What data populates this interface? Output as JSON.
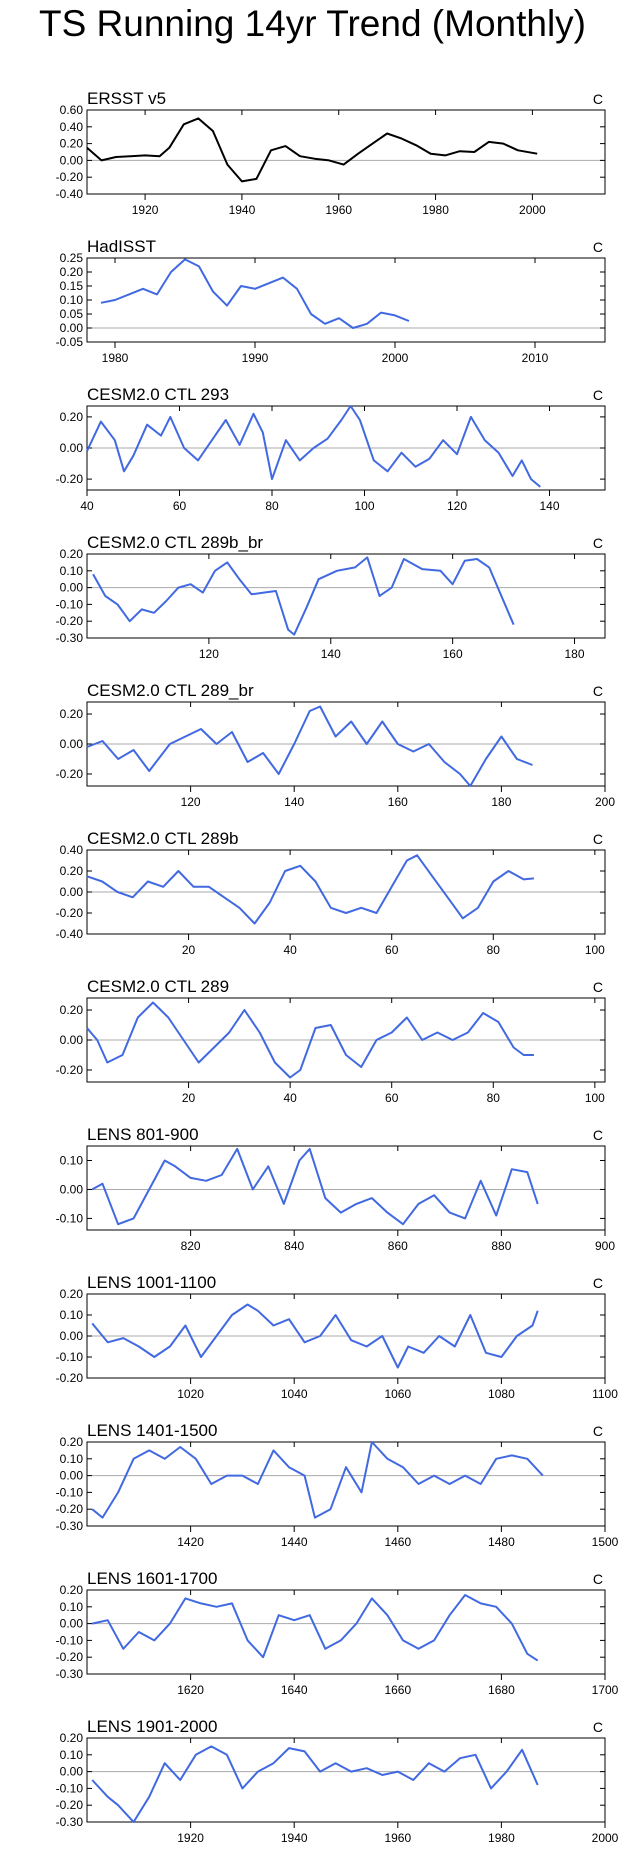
{
  "page_title": "TS Running 14yr Trend (Monthly)",
  "chart_data": [
    {
      "type": "line",
      "title": "ERSST v5",
      "units": "C",
      "series_color": "#000000",
      "xlim": [
        1908,
        2015
      ],
      "xticks": [
        1920,
        1940,
        1960,
        1980,
        2000
      ],
      "ylim": [
        -0.4,
        0.6
      ],
      "yticks": [
        -0.4,
        -0.2,
        0.0,
        0.2,
        0.4,
        0.6
      ],
      "yticklabels": [
        "-0.40",
        "-0.20",
        "0.00",
        "0.20",
        "0.40",
        "0.60"
      ],
      "x": [
        1908,
        1911,
        1914,
        1917,
        1920,
        1923,
        1925,
        1928,
        1931,
        1934,
        1937,
        1940,
        1943,
        1946,
        1949,
        1952,
        1955,
        1958,
        1961,
        1964,
        1967,
        1970,
        1973,
        1976,
        1979,
        1982,
        1985,
        1988,
        1991,
        1994,
        1997,
        2001
      ],
      "y": [
        0.15,
        0.0,
        0.04,
        0.05,
        0.06,
        0.05,
        0.15,
        0.43,
        0.5,
        0.35,
        -0.05,
        -0.25,
        -0.22,
        0.12,
        0.17,
        0.05,
        0.02,
        0.0,
        -0.05,
        0.08,
        0.2,
        0.32,
        0.26,
        0.18,
        0.08,
        0.06,
        0.11,
        0.1,
        0.22,
        0.2,
        0.12,
        0.08
      ]
    },
    {
      "type": "line",
      "title": "HadISST",
      "units": "C",
      "series_color": "#4169e1",
      "xlim": [
        1978,
        2015
      ],
      "xticks": [
        1980,
        1990,
        2000,
        2010
      ],
      "ylim": [
        -0.05,
        0.25
      ],
      "yticks": [
        -0.05,
        0.0,
        0.05,
        0.1,
        0.15,
        0.2,
        0.25
      ],
      "yticklabels": [
        "-0.05",
        "0.00",
        "0.05",
        "0.10",
        "0.15",
        "0.20",
        "0.25"
      ],
      "x": [
        1979,
        1980,
        1981,
        1982,
        1983,
        1984,
        1985,
        1986,
        1987,
        1988,
        1989,
        1990,
        1991,
        1992,
        1993,
        1994,
        1995,
        1996,
        1997,
        1998,
        1999,
        2000,
        2001
      ],
      "y": [
        0.09,
        0.1,
        0.12,
        0.14,
        0.12,
        0.2,
        0.245,
        0.22,
        0.13,
        0.08,
        0.15,
        0.14,
        0.16,
        0.18,
        0.14,
        0.05,
        0.015,
        0.035,
        0.0,
        0.015,
        0.055,
        0.045,
        0.025
      ]
    },
    {
      "type": "line",
      "title": "CESM2.0 CTL 293",
      "units": "C",
      "series_color": "#4169e1",
      "xlim": [
        40,
        152
      ],
      "xticks": [
        40,
        60,
        80,
        100,
        120,
        140
      ],
      "ylim": [
        -0.27,
        0.27
      ],
      "yticks": [
        -0.2,
        0.0,
        0.2
      ],
      "yticklabels": [
        "-0.20",
        "0.00",
        "0.20"
      ],
      "x": [
        40,
        43,
        46,
        48,
        50,
        53,
        56,
        58,
        61,
        64,
        67,
        70,
        73,
        76,
        78,
        80,
        83,
        86,
        89,
        92,
        95,
        97,
        99,
        102,
        105,
        108,
        111,
        114,
        117,
        120,
        123,
        126,
        129,
        132,
        134,
        136,
        138
      ],
      "y": [
        -0.02,
        0.17,
        0.05,
        -0.15,
        -0.05,
        0.15,
        0.08,
        0.2,
        0.0,
        -0.08,
        0.05,
        0.18,
        0.02,
        0.22,
        0.1,
        -0.2,
        0.05,
        -0.08,
        0.0,
        0.06,
        0.18,
        0.27,
        0.18,
        -0.08,
        -0.15,
        -0.03,
        -0.12,
        -0.07,
        0.05,
        -0.04,
        0.2,
        0.05,
        -0.03,
        -0.18,
        -0.08,
        -0.2,
        -0.25
      ]
    },
    {
      "type": "line",
      "title": "CESM2.0 CTL 289b_br",
      "units": "C",
      "series_color": "#4169e1",
      "xlim": [
        100,
        185
      ],
      "xticks": [
        120,
        140,
        160,
        180
      ],
      "ylim": [
        -0.3,
        0.2
      ],
      "yticks": [
        -0.3,
        -0.2,
        -0.1,
        0.0,
        0.1,
        0.2
      ],
      "yticklabels": [
        "-0.30",
        "-0.20",
        "-0.10",
        "0.00",
        "0.10",
        "0.20"
      ],
      "x": [
        101,
        103,
        105,
        107,
        109,
        111,
        113,
        115,
        117,
        119,
        121,
        123,
        125,
        127,
        129,
        131,
        133,
        134,
        136,
        138,
        141,
        144,
        146,
        148,
        150,
        152,
        155,
        158,
        160,
        162,
        164,
        166,
        168,
        170
      ],
      "y": [
        0.08,
        -0.05,
        -0.1,
        -0.2,
        -0.13,
        -0.15,
        -0.08,
        0.0,
        0.02,
        -0.03,
        0.1,
        0.15,
        0.05,
        -0.04,
        -0.03,
        -0.02,
        -0.25,
        -0.28,
        -0.12,
        0.05,
        0.1,
        0.12,
        0.18,
        -0.05,
        0.0,
        0.17,
        0.11,
        0.1,
        0.02,
        0.16,
        0.17,
        0.12,
        -0.05,
        -0.22
      ]
    },
    {
      "type": "line",
      "title": "CESM2.0 CTL 289_br",
      "units": "C",
      "series_color": "#4169e1",
      "xlim": [
        100,
        200
      ],
      "xticks": [
        120,
        140,
        160,
        180,
        200
      ],
      "ylim": [
        -0.28,
        0.28
      ],
      "yticks": [
        -0.2,
        0.0,
        0.2
      ],
      "yticklabels": [
        "-0.20",
        "0.00",
        "0.20"
      ],
      "x": [
        100,
        103,
        106,
        109,
        112,
        116,
        119,
        122,
        125,
        128,
        131,
        134,
        137,
        140,
        143,
        145,
        148,
        151,
        154,
        157,
        160,
        163,
        166,
        169,
        172,
        174,
        177,
        180,
        183,
        186
      ],
      "y": [
        -0.02,
        0.02,
        -0.1,
        -0.04,
        -0.18,
        0.0,
        0.05,
        0.1,
        0.0,
        0.08,
        -0.12,
        -0.06,
        -0.2,
        0.0,
        0.22,
        0.25,
        0.05,
        0.15,
        0.0,
        0.15,
        0.0,
        -0.05,
        0.0,
        -0.12,
        -0.2,
        -0.28,
        -0.1,
        0.05,
        -0.1,
        -0.14
      ]
    },
    {
      "type": "line",
      "title": "CESM2.0 CTL 289b",
      "units": "C",
      "series_color": "#4169e1",
      "xlim": [
        0,
        102
      ],
      "xticks": [
        20,
        40,
        60,
        80,
        100
      ],
      "ylim": [
        -0.4,
        0.4
      ],
      "yticks": [
        -0.4,
        -0.2,
        0.0,
        0.2,
        0.4
      ],
      "yticklabels": [
        "-0.40",
        "-0.20",
        "0.00",
        "0.20",
        "0.40"
      ],
      "x": [
        0,
        3,
        6,
        9,
        12,
        15,
        18,
        21,
        24,
        27,
        30,
        33,
        36,
        39,
        42,
        45,
        48,
        51,
        54,
        57,
        60,
        63,
        65,
        68,
        71,
        74,
        77,
        80,
        83,
        86,
        88
      ],
      "y": [
        0.15,
        0.1,
        0.0,
        -0.05,
        0.1,
        0.05,
        0.2,
        0.05,
        0.05,
        -0.05,
        -0.15,
        -0.3,
        -0.1,
        0.2,
        0.25,
        0.1,
        -0.15,
        -0.2,
        -0.15,
        -0.2,
        0.05,
        0.3,
        0.35,
        0.15,
        -0.05,
        -0.25,
        -0.15,
        0.1,
        0.2,
        0.12,
        0.13
      ]
    },
    {
      "type": "line",
      "title": "CESM2.0 CTL 289",
      "units": "C",
      "series_color": "#4169e1",
      "xlim": [
        0,
        102
      ],
      "xticks": [
        20,
        40,
        60,
        80,
        100
      ],
      "ylim": [
        -0.28,
        0.28
      ],
      "yticks": [
        -0.2,
        0.0,
        0.2
      ],
      "yticklabels": [
        "-0.20",
        "0.00",
        "0.20"
      ],
      "x": [
        0,
        2,
        4,
        7,
        10,
        13,
        16,
        19,
        22,
        25,
        28,
        31,
        34,
        37,
        40,
        42,
        45,
        48,
        51,
        54,
        57,
        60,
        63,
        66,
        69,
        72,
        75,
        78,
        81,
        84,
        86,
        88
      ],
      "y": [
        0.08,
        0.0,
        -0.15,
        -0.1,
        0.15,
        0.25,
        0.15,
        0.0,
        -0.15,
        -0.05,
        0.05,
        0.2,
        0.05,
        -0.15,
        -0.25,
        -0.2,
        0.08,
        0.1,
        -0.1,
        -0.18,
        0.0,
        0.05,
        0.15,
        0.0,
        0.05,
        0.0,
        0.05,
        0.18,
        0.12,
        -0.05,
        -0.1,
        -0.1
      ]
    },
    {
      "type": "line",
      "title": "LENS 801-900",
      "units": "C",
      "series_color": "#4169e1",
      "xlim": [
        800,
        900
      ],
      "xticks": [
        820,
        840,
        860,
        880,
        900
      ],
      "ylim": [
        -0.14,
        0.15
      ],
      "yticks": [
        -0.1,
        0.0,
        0.1
      ],
      "yticklabels": [
        "-0.10",
        "0.00",
        "0.10"
      ],
      "x": [
        801,
        803,
        806,
        809,
        812,
        815,
        817,
        820,
        823,
        826,
        829,
        832,
        835,
        838,
        841,
        843,
        846,
        849,
        852,
        855,
        858,
        861,
        864,
        867,
        870,
        873,
        876,
        879,
        882,
        885,
        887
      ],
      "y": [
        0.0,
        0.02,
        -0.12,
        -0.1,
        0.0,
        0.1,
        0.08,
        0.04,
        0.03,
        0.05,
        0.14,
        0.0,
        0.08,
        -0.05,
        0.1,
        0.14,
        -0.03,
        -0.08,
        -0.05,
        -0.03,
        -0.08,
        -0.12,
        -0.05,
        -0.02,
        -0.08,
        -0.1,
        0.03,
        -0.09,
        0.07,
        0.06,
        -0.05
      ]
    },
    {
      "type": "line",
      "title": "LENS 1001-1100",
      "units": "C",
      "series_color": "#4169e1",
      "xlim": [
        1000,
        1100
      ],
      "xticks": [
        1020,
        1040,
        1060,
        1080,
        1100
      ],
      "ylim": [
        -0.2,
        0.2
      ],
      "yticks": [
        -0.2,
        -0.1,
        0.0,
        0.1,
        0.2
      ],
      "yticklabels": [
        "-0.20",
        "-0.10",
        "0.00",
        "0.10",
        "0.20"
      ],
      "x": [
        1001,
        1004,
        1007,
        1010,
        1013,
        1016,
        1019,
        1022,
        1025,
        1028,
        1031,
        1033,
        1036,
        1039,
        1042,
        1045,
        1048,
        1051,
        1054,
        1057,
        1060,
        1062,
        1065,
        1068,
        1071,
        1074,
        1077,
        1080,
        1083,
        1086,
        1087
      ],
      "y": [
        0.06,
        -0.03,
        -0.01,
        -0.05,
        -0.1,
        -0.05,
        0.05,
        -0.1,
        0.0,
        0.1,
        0.15,
        0.12,
        0.05,
        0.08,
        -0.03,
        0.0,
        0.1,
        -0.02,
        -0.05,
        0.0,
        -0.15,
        -0.05,
        -0.08,
        0.0,
        -0.05,
        0.1,
        -0.08,
        -0.1,
        0.0,
        0.05,
        0.12
      ]
    },
    {
      "type": "line",
      "title": "LENS 1401-1500",
      "units": "C",
      "series_color": "#4169e1",
      "xlim": [
        1400,
        1500
      ],
      "xticks": [
        1420,
        1440,
        1460,
        1480,
        1500
      ],
      "ylim": [
        -0.3,
        0.2
      ],
      "yticks": [
        -0.3,
        -0.2,
        -0.1,
        0.0,
        0.1,
        0.2
      ],
      "yticklabels": [
        "-0.30",
        "-0.20",
        "-0.10",
        "0.00",
        "0.10",
        "0.20"
      ],
      "x": [
        1401,
        1403,
        1406,
        1409,
        1412,
        1415,
        1418,
        1421,
        1424,
        1427,
        1430,
        1433,
        1436,
        1439,
        1442,
        1444,
        1447,
        1450,
        1453,
        1455,
        1458,
        1461,
        1464,
        1467,
        1470,
        1473,
        1476,
        1479,
        1482,
        1485,
        1488
      ],
      "y": [
        -0.2,
        -0.25,
        -0.1,
        0.1,
        0.15,
        0.1,
        0.17,
        0.1,
        -0.05,
        0.0,
        0.0,
        -0.05,
        0.15,
        0.05,
        0.0,
        -0.25,
        -0.2,
        0.05,
        -0.1,
        0.2,
        0.1,
        0.05,
        -0.05,
        0.0,
        -0.05,
        0.0,
        -0.05,
        0.1,
        0.12,
        0.1,
        0.0
      ]
    },
    {
      "type": "line",
      "title": "LENS 1601-1700",
      "units": "C",
      "series_color": "#4169e1",
      "xlim": [
        1600,
        1700
      ],
      "xticks": [
        1620,
        1640,
        1660,
        1680,
        1700
      ],
      "ylim": [
        -0.3,
        0.2
      ],
      "yticks": [
        -0.3,
        -0.2,
        -0.1,
        0.0,
        0.1,
        0.2
      ],
      "yticklabels": [
        "-0.30",
        "-0.20",
        "-0.10",
        "0.00",
        "0.10",
        "0.20"
      ],
      "x": [
        1601,
        1604,
        1607,
        1610,
        1613,
        1616,
        1619,
        1622,
        1625,
        1628,
        1631,
        1634,
        1637,
        1640,
        1643,
        1646,
        1649,
        1652,
        1655,
        1658,
        1661,
        1664,
        1667,
        1670,
        1673,
        1676,
        1679,
        1682,
        1685,
        1687
      ],
      "y": [
        0.0,
        0.02,
        -0.15,
        -0.05,
        -0.1,
        0.0,
        0.15,
        0.12,
        0.1,
        0.12,
        -0.1,
        -0.2,
        0.05,
        0.02,
        0.05,
        -0.15,
        -0.1,
        0.0,
        0.15,
        0.05,
        -0.1,
        -0.15,
        -0.1,
        0.05,
        0.17,
        0.12,
        0.1,
        0.0,
        -0.18,
        -0.22
      ]
    },
    {
      "type": "line",
      "title": "LENS 1901-2000",
      "units": "C",
      "series_color": "#4169e1",
      "xlim": [
        1900,
        2000
      ],
      "xticks": [
        1920,
        1940,
        1960,
        1980,
        2000
      ],
      "ylim": [
        -0.3,
        0.2
      ],
      "yticks": [
        -0.3,
        -0.2,
        -0.1,
        0.0,
        0.1,
        0.2
      ],
      "yticklabels": [
        "-0.30",
        "-0.20",
        "-0.10",
        "0.00",
        "0.10",
        "0.20"
      ],
      "x": [
        1901,
        1904,
        1906,
        1909,
        1912,
        1915,
        1918,
        1921,
        1924,
        1927,
        1930,
        1933,
        1936,
        1939,
        1942,
        1945,
        1948,
        1951,
        1954,
        1957,
        1960,
        1963,
        1966,
        1969,
        1972,
        1975,
        1978,
        1981,
        1984,
        1987
      ],
      "y": [
        -0.05,
        -0.15,
        -0.2,
        -0.3,
        -0.15,
        0.05,
        -0.05,
        0.1,
        0.15,
        0.1,
        -0.1,
        0.0,
        0.05,
        0.14,
        0.12,
        0.0,
        0.05,
        0.0,
        0.02,
        -0.02,
        0.0,
        -0.05,
        0.05,
        0.0,
        0.08,
        0.1,
        -0.1,
        0.0,
        0.13,
        -0.08
      ]
    }
  ]
}
